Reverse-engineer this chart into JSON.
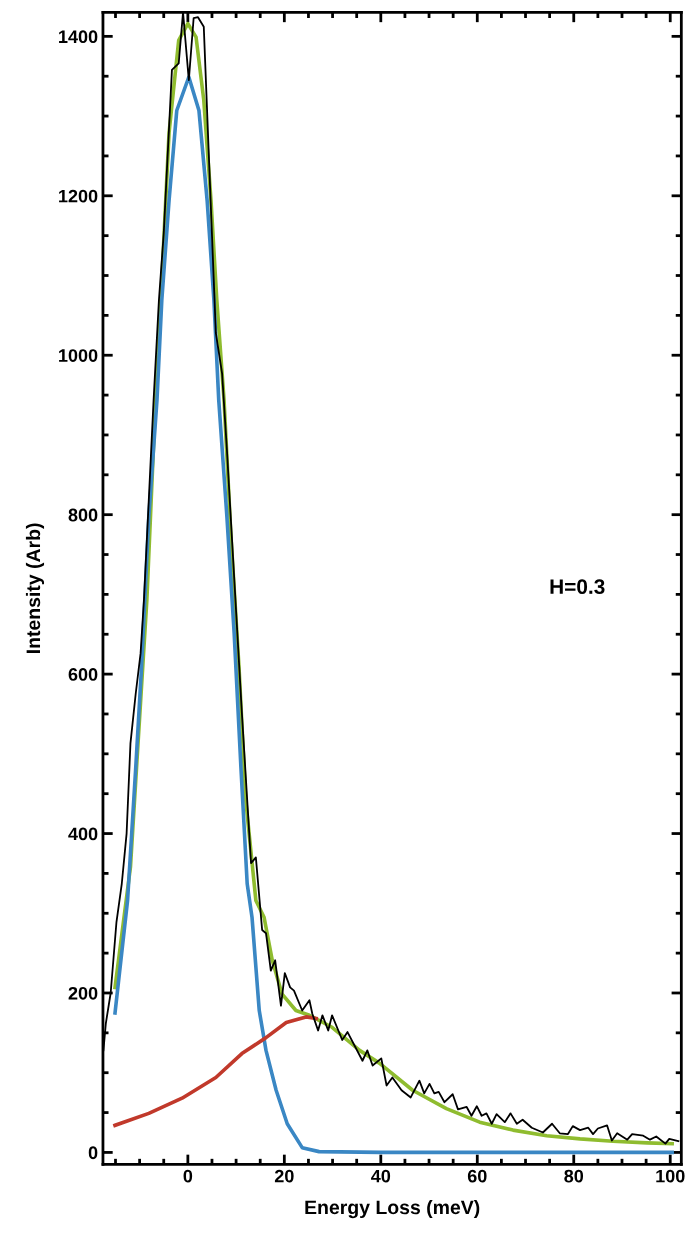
{
  "chart_data": {
    "type": "line",
    "xlabel": "Energy Loss (meV)",
    "ylabel": "Intensity (Arb)",
    "annotations": [
      "H=0.3"
    ],
    "xlim": [
      -17.6,
      102.3
    ],
    "ylim": [
      -15,
      1430
    ],
    "xticks": [
      0,
      20,
      40,
      60,
      80,
      100
    ],
    "yticks": [
      0,
      200,
      400,
      600,
      800,
      1000,
      1200,
      1400
    ],
    "grid": false,
    "legend": false,
    "marker": "none",
    "line_style": "solid",
    "series": [
      {
        "color": "#000000",
        "x": [
          -17.5,
          -17,
          -16,
          -14.8,
          -13.7,
          -12.7,
          -11.9,
          -10.8,
          -9.8,
          -9.1,
          -7.1,
          -6,
          -5,
          -3.3,
          -1.9,
          -1,
          0.2,
          1.2,
          2.1,
          3.3,
          5.8,
          7.1,
          8.1,
          11.2,
          13.1,
          14.1,
          15.4,
          16.2,
          17.2,
          18.1,
          19.3,
          20.1,
          21.2,
          22,
          23.7,
          25.2,
          25.8,
          27,
          27.9,
          29.1,
          29.9,
          32,
          33.1,
          36.2,
          37.2,
          38.3,
          40.1,
          41.2,
          42.4,
          44.3,
          46.2,
          48,
          49,
          50.1,
          51.1,
          52,
          53.2,
          54.9,
          56,
          57.8,
          58.8,
          59.9,
          60.9,
          61.9,
          63,
          64,
          65.7,
          66.9,
          68.2,
          69.4,
          71.3,
          73.6,
          75.5,
          77.1,
          78.8,
          79.8,
          81.3,
          83,
          84,
          85,
          86.9,
          87.9,
          89,
          91.1,
          92.1,
          94.4,
          95.8,
          97.1,
          99,
          99.8,
          101.7
        ],
        "values": [
          128,
          162,
          200,
          289,
          337,
          400,
          513,
          576,
          626,
          693,
          944,
          1069,
          1153,
          1358,
          1366,
          1430,
          1345,
          1423,
          1424,
          1412,
          1028,
          977,
          881,
          551,
          363,
          370,
          279,
          275,
          228,
          241,
          184,
          225,
          207,
          203,
          178,
          191,
          174,
          153,
          172,
          153,
          172,
          141,
          151,
          115,
          128,
          109,
          118,
          84,
          94,
          78,
          69,
          90,
          74,
          86,
          74,
          76,
          63,
          73,
          54,
          57,
          46,
          58,
          46,
          49,
          36,
          48,
          38,
          49,
          36,
          41,
          31,
          25,
          36,
          24,
          23,
          33,
          28,
          31,
          23,
          30,
          34,
          15,
          24,
          16,
          23,
          21,
          16,
          20,
          11,
          17,
          14
        ]
      },
      {
        "color": "#8fbc2f",
        "x": [
          -15.1,
          -11.9,
          -10.2,
          -8.5,
          -6.7,
          -5.6,
          -3.9,
          -1.9,
          0,
          1.7,
          3.3,
          4.8,
          6,
          7.5,
          8.9,
          10.6,
          12,
          14.1,
          15.8,
          17.5,
          19.5,
          22.4,
          25.2,
          29.9,
          35.6,
          39.7,
          46.6,
          53.6,
          60.5,
          67.4,
          74.4,
          81.3,
          88.1,
          95.2,
          100.4
        ],
        "values": [
          207,
          358,
          526,
          693,
          944,
          1069,
          1279,
          1395,
          1416,
          1399,
          1320,
          1194,
          1069,
          944,
          777,
          609,
          442,
          316,
          295,
          241,
          199,
          178,
          172,
          157,
          128,
          112,
          78,
          55,
          38,
          28,
          21,
          17,
          14,
          12,
          11
        ]
      },
      {
        "color": "#3a87c4",
        "x": [
          -15.1,
          -12.5,
          -10.8,
          -9.6,
          -8.1,
          -6.4,
          -5.4,
          -3.9,
          -2.3,
          0.2,
          2.3,
          4,
          5.4,
          6.4,
          8.1,
          9.6,
          11,
          12.3,
          13.3,
          14.8,
          16.2,
          18.3,
          20.6,
          23.7,
          27.2,
          40,
          60,
          80,
          100.4
        ],
        "values": [
          175,
          316,
          483,
          609,
          797,
          944,
          1069,
          1194,
          1307,
          1349,
          1307,
          1194,
          1069,
          944,
          797,
          651,
          483,
          337,
          295,
          178,
          128,
          78,
          36,
          6,
          1,
          0,
          0,
          0,
          0
        ]
      },
      {
        "color": "#c1392b",
        "x": [
          -15.1,
          -8.1,
          -1.2,
          5.8,
          11.2,
          16.2,
          20.4,
          24.5,
          26.6
        ],
        "values": [
          34,
          49,
          68,
          94,
          124,
          144,
          163,
          170,
          168
        ]
      }
    ]
  }
}
